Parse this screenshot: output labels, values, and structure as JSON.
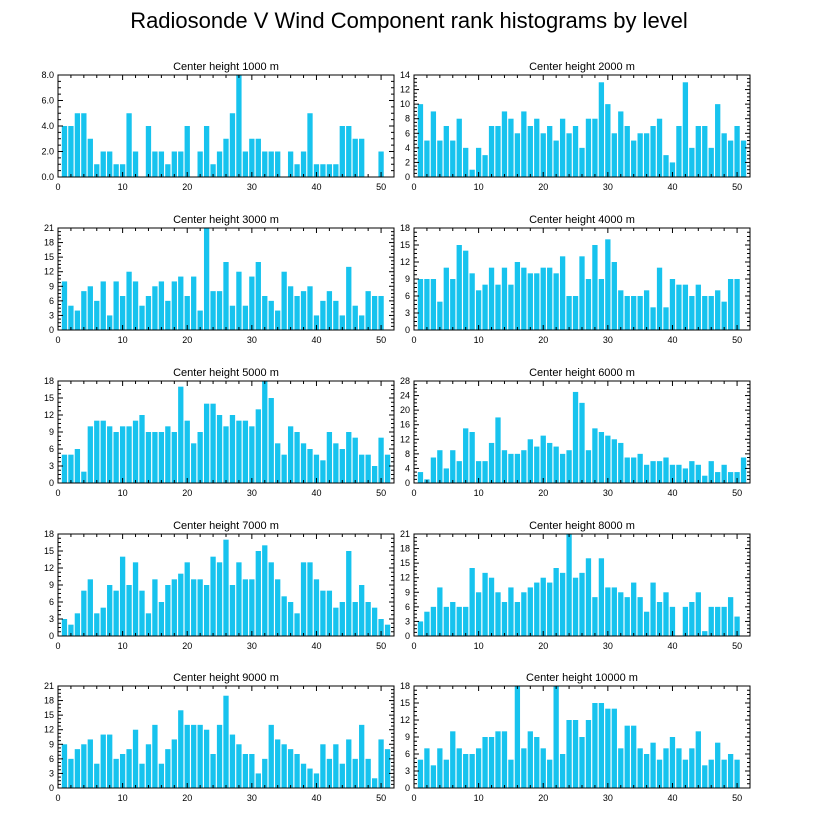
{
  "title": "Radiosonde V Wind Component rank histograms by level",
  "bar_color": "#17c3ee",
  "chart_data": [
    {
      "type": "bar",
      "title": "Center height 1000 m",
      "xlim": [
        0,
        52
      ],
      "ylim": [
        0,
        8
      ],
      "yticks": [
        "0.0",
        "2.0",
        "4.0",
        "6.0",
        "8.0"
      ],
      "xticks": [
        "0",
        "10",
        "20",
        "30",
        "40",
        "50"
      ],
      "values": [
        4,
        4,
        5,
        5,
        3,
        1,
        2,
        2,
        1,
        1,
        5,
        2,
        0,
        4,
        2,
        2,
        1,
        2,
        2,
        4,
        0,
        2,
        4,
        1,
        2,
        3,
        5,
        8,
        2,
        3,
        3,
        2,
        2,
        2,
        0,
        2,
        1,
        2,
        5,
        1,
        1,
        1,
        1,
        4,
        4,
        3,
        3,
        0,
        0,
        2
      ]
    },
    {
      "type": "bar",
      "title": "Center height 2000 m",
      "xlim": [
        0,
        52
      ],
      "ylim": [
        0,
        14
      ],
      "yticks": [
        "0",
        "2",
        "4",
        "6",
        "8",
        "10",
        "12",
        "14"
      ],
      "xticks": [
        "0",
        "10",
        "20",
        "30",
        "40",
        "50"
      ],
      "values": [
        10,
        5,
        9,
        5,
        7,
        5,
        8,
        4,
        1,
        4,
        3,
        7,
        7,
        9,
        8,
        6,
        9,
        7,
        8,
        6,
        7,
        5,
        8,
        6,
        7,
        4,
        8,
        8,
        13,
        10,
        6,
        9,
        7,
        5,
        6,
        6,
        7,
        8,
        3,
        2,
        7,
        13,
        4,
        7,
        7,
        4,
        10,
        6,
        5,
        7,
        5
      ]
    },
    {
      "type": "bar",
      "title": "Center height 3000 m",
      "xlim": [
        0,
        52
      ],
      "ylim": [
        0,
        21
      ],
      "yticks": [
        "0",
        "3",
        "6",
        "9",
        "12",
        "15",
        "18",
        "21"
      ],
      "xticks": [
        "0",
        "10",
        "20",
        "30",
        "40",
        "50"
      ],
      "values": [
        10,
        5,
        4,
        8,
        9,
        6,
        10,
        3,
        10,
        7,
        12,
        10,
        5,
        7,
        9,
        10,
        6,
        10,
        11,
        7,
        11,
        4,
        21,
        8,
        8,
        14,
        5,
        12,
        5,
        11,
        14,
        7,
        6,
        4,
        12,
        9,
        7,
        8,
        9,
        3,
        6,
        8,
        6,
        3,
        13,
        5,
        3,
        8,
        7,
        7,
        0
      ]
    },
    {
      "type": "bar",
      "title": "Center height 4000 m",
      "xlim": [
        0,
        52
      ],
      "ylim": [
        0,
        18
      ],
      "yticks": [
        "0",
        "3",
        "6",
        "9",
        "12",
        "15",
        "18"
      ],
      "xticks": [
        "0",
        "10",
        "20",
        "30",
        "40",
        "50"
      ],
      "values": [
        9,
        9,
        9,
        5,
        11,
        9,
        15,
        14,
        10,
        7,
        8,
        11,
        8,
        11,
        8,
        12,
        11,
        10,
        10,
        11,
        11,
        10,
        13,
        6,
        6,
        13,
        9,
        15,
        9,
        16,
        12,
        7,
        6,
        6,
        6,
        7,
        4,
        11,
        4,
        9,
        8,
        8,
        6,
        8,
        6,
        6,
        7,
        5,
        9,
        9,
        0
      ]
    },
    {
      "type": "bar",
      "title": "Center height 5000 m",
      "xlim": [
        0,
        52
      ],
      "ylim": [
        0,
        18
      ],
      "yticks": [
        "0",
        "3",
        "6",
        "9",
        "12",
        "15",
        "18"
      ],
      "xticks": [
        "0",
        "10",
        "20",
        "30",
        "40",
        "50"
      ],
      "values": [
        5,
        5,
        6,
        2,
        10,
        11,
        11,
        10,
        9,
        10,
        10,
        11,
        12,
        9,
        9,
        9,
        10,
        9,
        17,
        11,
        7,
        9,
        14,
        14,
        12,
        10,
        12,
        11,
        11,
        10,
        13,
        18,
        15,
        7,
        5,
        10,
        9,
        7,
        6,
        5,
        4,
        9,
        7,
        6,
        9,
        8,
        5,
        5,
        3,
        8,
        5
      ]
    },
    {
      "type": "bar",
      "title": "Center height 6000 m",
      "xlim": [
        0,
        52
      ],
      "ylim": [
        0,
        28
      ],
      "yticks": [
        "0",
        "4",
        "8",
        "12",
        "16",
        "20",
        "24",
        "28"
      ],
      "xticks": [
        "0",
        "10",
        "20",
        "30",
        "40",
        "50"
      ],
      "values": [
        3,
        1,
        7,
        9,
        4,
        9,
        6,
        15,
        14,
        6,
        6,
        11,
        18,
        9,
        8,
        8,
        9,
        12,
        10,
        13,
        11,
        10,
        8,
        9,
        25,
        22,
        9,
        15,
        14,
        13,
        12,
        11,
        7,
        7,
        8,
        5,
        6,
        6,
        7,
        5,
        5,
        4,
        6,
        5,
        2,
        6,
        3,
        5,
        3,
        3,
        7
      ]
    },
    {
      "type": "bar",
      "title": "Center height 7000 m",
      "xlim": [
        0,
        52
      ],
      "ylim": [
        0,
        18
      ],
      "yticks": [
        "0",
        "3",
        "6",
        "9",
        "12",
        "15",
        "18"
      ],
      "xticks": [
        "0",
        "10",
        "20",
        "30",
        "40",
        "50"
      ],
      "values": [
        3,
        2,
        4,
        8,
        10,
        4,
        5,
        9,
        8,
        14,
        9,
        13,
        8,
        4,
        10,
        6,
        9,
        10,
        11,
        13,
        10,
        10,
        9,
        14,
        13,
        17,
        9,
        13,
        10,
        10,
        15,
        16,
        13,
        10,
        7,
        6,
        4,
        13,
        13,
        10,
        8,
        8,
        5,
        6,
        15,
        6,
        9,
        6,
        5,
        3,
        2
      ]
    },
    {
      "type": "bar",
      "title": "Center height 8000 m",
      "xlim": [
        0,
        52
      ],
      "ylim": [
        0,
        21
      ],
      "yticks": [
        "0",
        "3",
        "6",
        "9",
        "12",
        "15",
        "18",
        "21"
      ],
      "xticks": [
        "0",
        "10",
        "20",
        "30",
        "40",
        "50"
      ],
      "values": [
        3,
        5,
        6,
        10,
        6,
        7,
        6,
        6,
        14,
        9,
        13,
        12,
        9,
        7,
        10,
        7,
        9,
        10,
        11,
        12,
        11,
        14,
        13,
        21,
        12,
        13,
        16,
        8,
        16,
        10,
        10,
        9,
        8,
        11,
        8,
        5,
        11,
        7,
        9,
        6,
        0,
        6,
        7,
        9,
        1,
        6,
        6,
        6,
        8,
        4,
        0
      ]
    },
    {
      "type": "bar",
      "title": "Center height 9000 m",
      "xlim": [
        0,
        52
      ],
      "ylim": [
        0,
        21
      ],
      "yticks": [
        "0",
        "3",
        "6",
        "9",
        "12",
        "15",
        "18",
        "21"
      ],
      "xticks": [
        "0",
        "10",
        "20",
        "30",
        "40",
        "50"
      ],
      "values": [
        9,
        6,
        8,
        9,
        10,
        5,
        11,
        11,
        6,
        7,
        8,
        12,
        5,
        9,
        13,
        5,
        8,
        10,
        16,
        13,
        13,
        13,
        12,
        7,
        13,
        19,
        11,
        9,
        7,
        7,
        3,
        6,
        13,
        10,
        9,
        8,
        7,
        5,
        4,
        3,
        9,
        6,
        9,
        5,
        10,
        6,
        13,
        6,
        2,
        10,
        8
      ]
    },
    {
      "type": "bar",
      "title": "Center height 10000 m",
      "xlim": [
        0,
        52
      ],
      "ylim": [
        0,
        18
      ],
      "yticks": [
        "0",
        "3",
        "6",
        "9",
        "12",
        "15",
        "18"
      ],
      "xticks": [
        "0",
        "10",
        "20",
        "30",
        "40",
        "50"
      ],
      "values": [
        5,
        7,
        4,
        7,
        5,
        10,
        7,
        6,
        6,
        7,
        9,
        9,
        10,
        10,
        5,
        18,
        7,
        10,
        9,
        7,
        5,
        18,
        6,
        12,
        12,
        9,
        12,
        15,
        15,
        14,
        14,
        7,
        11,
        11,
        7,
        6,
        8,
        5,
        7,
        9,
        7,
        5,
        7,
        10,
        4,
        5,
        8,
        5,
        6,
        5,
        0
      ]
    }
  ]
}
